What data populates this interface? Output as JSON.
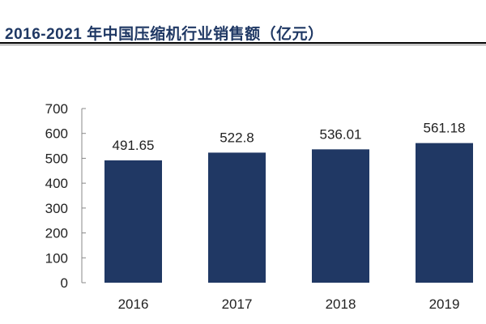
{
  "chart_data": {
    "type": "bar",
    "title": "2016-2021 年中国压缩机行业销售额（亿元）",
    "xlabel": "",
    "ylabel": "",
    "categories": [
      "2016",
      "2017",
      "2018",
      "2019"
    ],
    "values": [
      491.65,
      522.8,
      536.01,
      561.18
    ],
    "data_labels": [
      "491.65",
      "522.8",
      "536.01",
      "561.18"
    ],
    "ylim": [
      0,
      700
    ],
    "yticks": [
      0,
      100,
      200,
      300,
      400,
      500,
      600,
      700
    ],
    "grid": false,
    "legend": "none",
    "colors": {
      "bar": "#203864",
      "title": "#1f3864"
    }
  }
}
